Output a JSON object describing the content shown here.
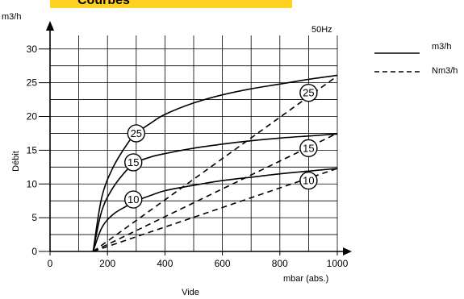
{
  "header": {
    "title": "Courbes"
  },
  "colors": {
    "header_bar": "#ffd21f",
    "ink": "#000000",
    "background": "#ffffff"
  },
  "chart_data": {
    "type": "line",
    "frequency_label": "50Hz",
    "ylabel_unit": "m3/h",
    "ylabel": "Débit",
    "xlabel": "Vide",
    "xlabel_unit": "mbar (abs.)",
    "xlim": [
      0,
      1000
    ],
    "ylim": [
      0,
      32
    ],
    "x_ticks": [
      0,
      200,
      400,
      600,
      800,
      1000
    ],
    "y_ticks": [
      0,
      5,
      10,
      15,
      20,
      25,
      30
    ],
    "grid": true,
    "legend_position": "top-right",
    "legend": [
      {
        "label": "m3/h",
        "style": "solid"
      },
      {
        "label": "Nm3/h",
        "style": "dashed"
      }
    ],
    "series": [
      {
        "name": "25",
        "style": "solid",
        "x": [
          150,
          180,
          220,
          270,
          300,
          350,
          400,
          500,
          600,
          700,
          800,
          900,
          1000
        ],
        "y": [
          0,
          8,
          12.5,
          16,
          17.5,
          19,
          20.3,
          22,
          23.2,
          24.1,
          24.8,
          25.5,
          26.1
        ],
        "label_at": [
          300,
          17.5
        ]
      },
      {
        "name": "15",
        "style": "solid",
        "x": [
          150,
          180,
          220,
          270,
          300,
          350,
          400,
          500,
          600,
          700,
          800,
          900,
          1000
        ],
        "y": [
          0,
          6,
          9.5,
          12.2,
          13.2,
          14,
          14.5,
          15.3,
          15.9,
          16.4,
          16.8,
          17.1,
          17.4
        ],
        "label_at": [
          290,
          13.2
        ]
      },
      {
        "name": "10",
        "style": "solid",
        "x": [
          150,
          180,
          220,
          270,
          300,
          350,
          400,
          500,
          600,
          700,
          800,
          900,
          1000
        ],
        "y": [
          0,
          3.5,
          5.5,
          6.8,
          7.5,
          8.3,
          9,
          9.8,
          10.5,
          11,
          11.5,
          11.9,
          12.3
        ],
        "label_at": [
          290,
          7.7
        ]
      },
      {
        "name": "25",
        "style": "dashed",
        "x": [
          150,
          1000
        ],
        "y": [
          0,
          26
        ],
        "label_at": [
          900,
          23.5
        ]
      },
      {
        "name": "15",
        "style": "dashed",
        "x": [
          150,
          1000
        ],
        "y": [
          0,
          17.5
        ],
        "label_at": [
          900,
          15.3
        ]
      },
      {
        "name": "10",
        "style": "dashed",
        "x": [
          150,
          1000
        ],
        "y": [
          0,
          12.3
        ],
        "label_at": [
          900,
          10.5
        ]
      }
    ]
  }
}
